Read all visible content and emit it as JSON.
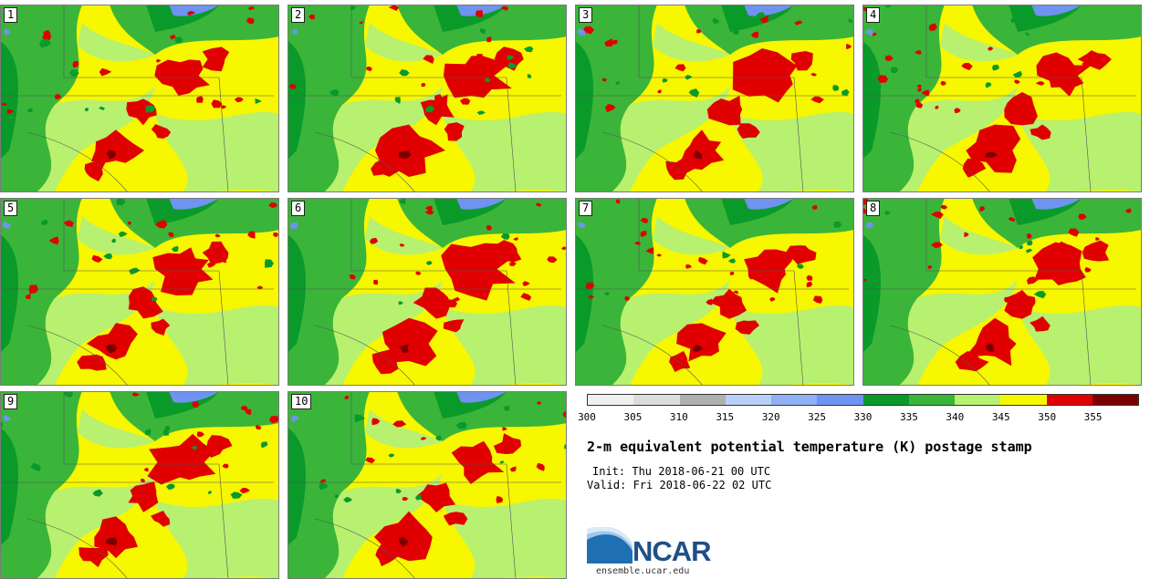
{
  "panels": [
    {
      "label": "1"
    },
    {
      "label": "2"
    },
    {
      "label": "3"
    },
    {
      "label": "4"
    },
    {
      "label": "5"
    },
    {
      "label": "6"
    },
    {
      "label": "7"
    },
    {
      "label": "8"
    },
    {
      "label": "9"
    },
    {
      "label": "10"
    }
  ],
  "legend": {
    "ticks": [
      "300",
      "305",
      "310",
      "315",
      "320",
      "325",
      "330",
      "335",
      "340",
      "345",
      "350",
      "355"
    ],
    "colors": [
      "#f0f0f0",
      "#dcdcdc",
      "#b0b0b0",
      "#b8d0f8",
      "#8fb0f5",
      "#6f93f0",
      "#0a9a2a",
      "#3ab53a",
      "#b8f070",
      "#f7f700",
      "#e00000",
      "#7a0000"
    ]
  },
  "title": "2-m equivalent potential temperature (K) postage stamp",
  "init_text": "Init: Thu 2018-06-21 00 UTC",
  "valid_text": "Valid: Fri 2018-06-22 02 UTC",
  "logo_text": "NCAR",
  "site": "ensemble.ucar.edu"
}
